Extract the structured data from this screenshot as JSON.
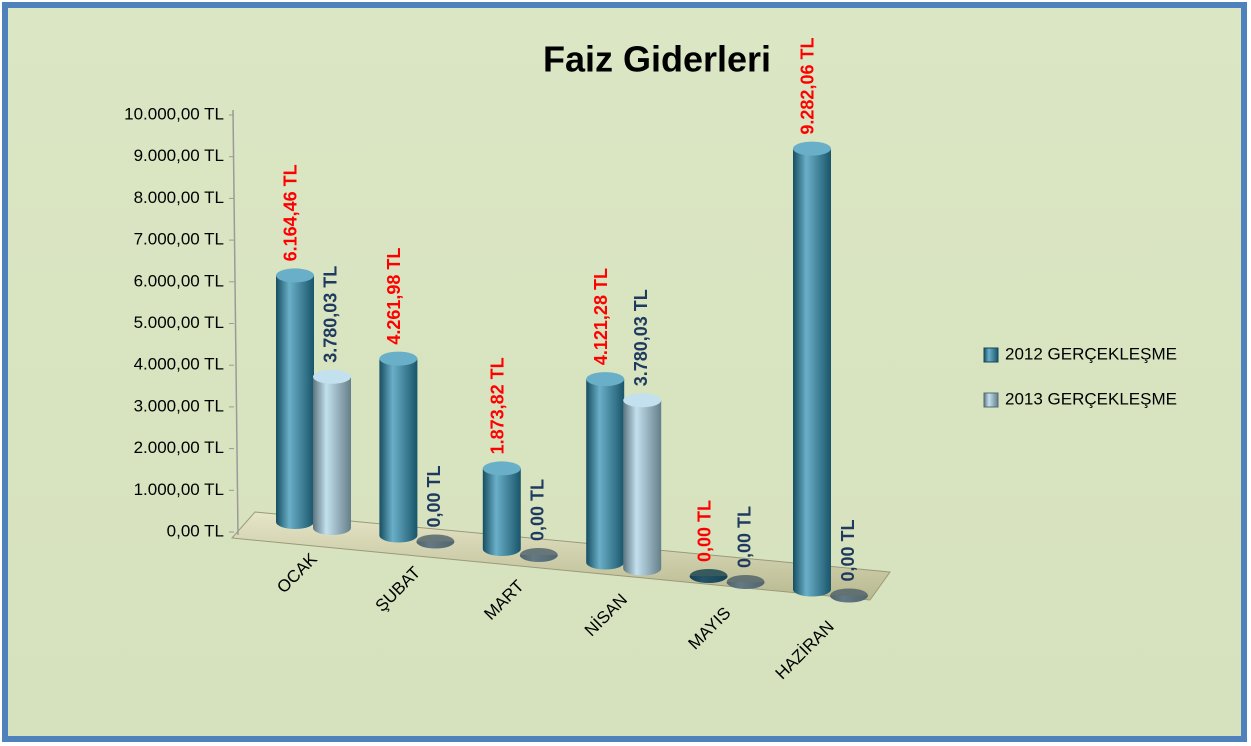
{
  "chart_data": {
    "type": "bar3d",
    "title": "Faiz Giderleri",
    "categories": [
      "OCAK",
      "ŞUBAT",
      "MART",
      "NİSAN",
      "MAYIS",
      "HAZİRAN"
    ],
    "series": [
      {
        "name": "2012 GERÇEKLEŞME",
        "color": "#2a8db0",
        "label_color": "#ff0000",
        "values": [
          6164.46,
          4261.98,
          1873.82,
          4121.28,
          0,
          9282.06
        ],
        "value_labels": [
          "6.164,46 TL",
          "4.261,98 TL",
          "1.873,82 TL",
          "4.121,28 TL",
          "0,00 TL",
          "9.282,06 TL"
        ]
      },
      {
        "name": "2013 GERÇEKLEŞME",
        "color": "#a9d3e6",
        "label_color": "#1f3a5f",
        "values": [
          3780.03,
          0,
          0,
          3780.03,
          0,
          0
        ],
        "value_labels": [
          "3.780,03 TL",
          "0,00 TL",
          "0,00 TL",
          "3.780,03 TL",
          "0,00 TL",
          "0,00 TL"
        ]
      }
    ],
    "ylim": [
      0,
      10000
    ],
    "yticks": [
      {
        "value": 0,
        "label": "0,00 TL"
      },
      {
        "value": 1000,
        "label": "1.000,00 TL"
      },
      {
        "value": 2000,
        "label": "2.000,00 TL"
      },
      {
        "value": 3000,
        "label": "3.000,00 TL"
      },
      {
        "value": 4000,
        "label": "4.000,00 TL"
      },
      {
        "value": 5000,
        "label": "5.000,00 TL"
      },
      {
        "value": 6000,
        "label": "6.000,00 TL"
      },
      {
        "value": 7000,
        "label": "7.000,00 TL"
      },
      {
        "value": 8000,
        "label": "8.000,00 TL"
      },
      {
        "value": 9000,
        "label": "9.000,00 TL"
      },
      {
        "value": 10000,
        "label": "10.000,00 TL"
      }
    ],
    "legend": "right"
  }
}
